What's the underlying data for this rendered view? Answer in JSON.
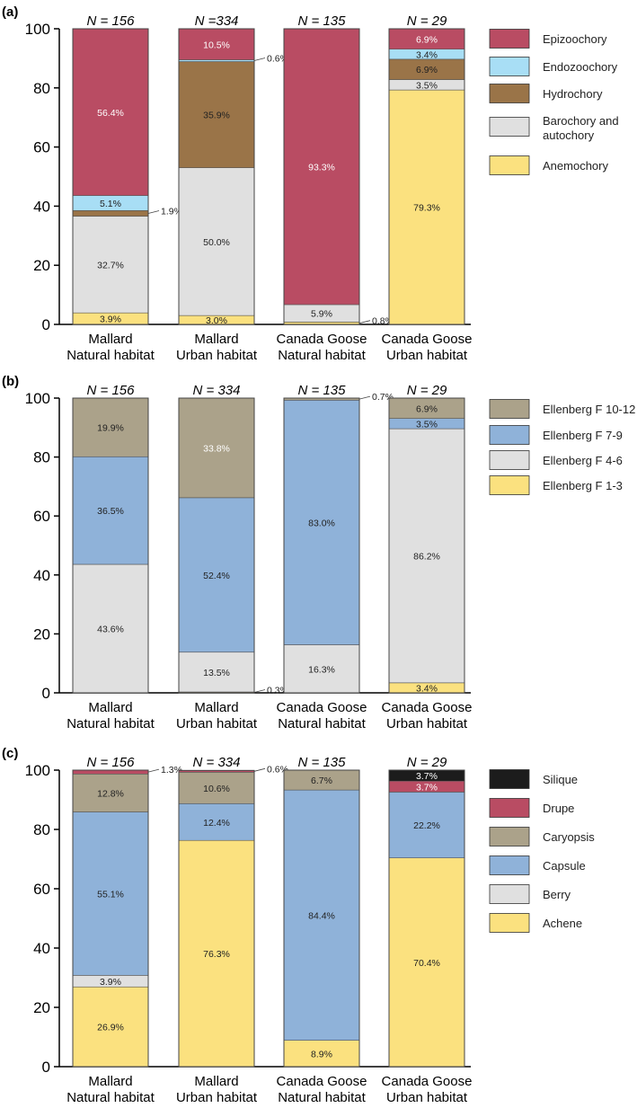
{
  "colors": {
    "epizoochory": "#b94c63",
    "endozoochory": "#a8def5",
    "hydrochory": "#9a7448",
    "barochory": "#e0e0e0",
    "anemochory": "#fbe17f",
    "ellenberg_10_12": "#aba28a",
    "ellenberg_7_9": "#8fb2d9",
    "ellenberg_4_6": "#e0e0e0",
    "ellenberg_1_3": "#fbe17f",
    "silique": "#1c1c1c",
    "drupe": "#b94c63",
    "caryopsis": "#aba28a",
    "capsule": "#8fb2d9",
    "berry": "#e0e0e0",
    "achene": "#fbe17f"
  },
  "chart_data": [
    {
      "type": "bar",
      "stacked": true,
      "panel_label": "(a)",
      "categories": [
        [
          "Mallard",
          "Natural habitat"
        ],
        [
          "Mallard",
          "Urban habitat"
        ],
        [
          "Canada Goose",
          "Natural habitat"
        ],
        [
          "Canada Goose",
          "Urban habitat"
        ]
      ],
      "n_labels": [
        "N = 156",
        "N =334",
        "N = 135",
        "N = 29"
      ],
      "ylim": [
        0,
        100
      ],
      "yticks": [
        0,
        20,
        40,
        60,
        80,
        100
      ],
      "series": [
        {
          "name": "Anemochory",
          "color_key": "anemochory",
          "values": [
            3.9,
            3.0,
            0.8,
            79.3
          ],
          "labels": [
            "3.9%",
            "3.0%",
            "0.8%",
            "79.3%"
          ]
        },
        {
          "name": "Barochory and autochory",
          "color_key": "barochory",
          "values": [
            32.7,
            50.0,
            5.9,
            3.5
          ],
          "labels": [
            "32.7%",
            "50.0%",
            "5.9%",
            "3.5%"
          ]
        },
        {
          "name": "Hydrochory",
          "color_key": "hydrochory",
          "values": [
            1.9,
            35.9,
            0,
            6.9
          ],
          "labels": [
            "1.9%",
            "35.9%",
            "",
            "6.9%"
          ]
        },
        {
          "name": "Endozoochory",
          "color_key": "endozoochory",
          "values": [
            5.1,
            0.6,
            0,
            3.4
          ],
          "labels": [
            "5.1%",
            "0.6%",
            "",
            "3.4%"
          ]
        },
        {
          "name": "Epizoochory",
          "color_key": "epizoochory",
          "values": [
            56.4,
            10.5,
            93.3,
            6.9
          ],
          "labels": [
            "56.4%",
            "10.5%",
            "93.3%",
            "6.9%"
          ]
        }
      ],
      "legend": [
        {
          "label": "Epizoochory",
          "color_key": "epizoochory"
        },
        {
          "label": "Endozoochory",
          "color_key": "endozoochory"
        },
        {
          "label": "Hydrochory",
          "color_key": "hydrochory"
        },
        {
          "label": "Barochory and autochory",
          "color_key": "barochory"
        },
        {
          "label": "Anemochory",
          "color_key": "anemochory"
        }
      ]
    },
    {
      "type": "bar",
      "stacked": true,
      "panel_label": "(b)",
      "categories": [
        [
          "Mallard",
          "Natural habitat"
        ],
        [
          "Mallard",
          "Urban habitat"
        ],
        [
          "Canada Goose",
          "Natural habitat"
        ],
        [
          "Canada Goose",
          "Urban habitat"
        ]
      ],
      "n_labels": [
        "N = 156",
        "N = 334",
        "N = 135",
        "N = 29"
      ],
      "ylim": [
        0,
        100
      ],
      "yticks": [
        0,
        20,
        40,
        60,
        80,
        100
      ],
      "series": [
        {
          "name": "Ellenberg F 1-3",
          "color_key": "ellenberg_1_3",
          "values": [
            0,
            0.3,
            0,
            3.4
          ],
          "labels": [
            "",
            "0.3%",
            "",
            "3.4%"
          ]
        },
        {
          "name": "Ellenberg F 4-6",
          "color_key": "ellenberg_4_6",
          "values": [
            43.6,
            13.5,
            16.3,
            86.2
          ],
          "labels": [
            "43.6%",
            "13.5%",
            "16.3%",
            "86.2%"
          ]
        },
        {
          "name": "Ellenberg F 7-9",
          "color_key": "ellenberg_7_9",
          "values": [
            36.5,
            52.4,
            83.0,
            3.5
          ],
          "labels": [
            "36.5%",
            "52.4%",
            "83.0%",
            "3.5%"
          ]
        },
        {
          "name": "Ellenberg F 10-12",
          "color_key": "ellenberg_10_12",
          "values": [
            19.9,
            33.8,
            0.7,
            6.9
          ],
          "labels": [
            "19.9%",
            "33.8%",
            "0.7%",
            "6.9%"
          ]
        }
      ],
      "legend": [
        {
          "label": "Ellenberg F 10-12",
          "color_key": "ellenberg_10_12"
        },
        {
          "label": "Ellenberg F 7-9",
          "color_key": "ellenberg_7_9"
        },
        {
          "label": "Ellenberg F 4-6",
          "color_key": "ellenberg_4_6"
        },
        {
          "label": "Ellenberg F 1-3",
          "color_key": "ellenberg_1_3"
        }
      ]
    },
    {
      "type": "bar",
      "stacked": true,
      "panel_label": "(c)",
      "categories": [
        [
          "Mallard",
          "Natural habitat"
        ],
        [
          "Mallard",
          "Urban habitat"
        ],
        [
          "Canada Goose",
          "Natural habitat"
        ],
        [
          "Canada Goose",
          "Urban habitat"
        ]
      ],
      "n_labels": [
        "N = 156",
        "N = 334",
        "N = 135",
        "N = 29"
      ],
      "ylim": [
        0,
        100
      ],
      "yticks": [
        0,
        20,
        40,
        60,
        80,
        100
      ],
      "series": [
        {
          "name": "Achene",
          "color_key": "achene",
          "values": [
            26.9,
            76.3,
            8.9,
            70.4
          ],
          "labels": [
            "26.9%",
            "76.3%",
            "8.9%",
            "70.4%"
          ]
        },
        {
          "name": "Berry",
          "color_key": "berry",
          "values": [
            3.9,
            0,
            0,
            0
          ],
          "labels": [
            "3.9%",
            "",
            "",
            ""
          ]
        },
        {
          "name": "Capsule",
          "color_key": "capsule",
          "values": [
            55.1,
            12.4,
            84.4,
            22.2
          ],
          "labels": [
            "55.1%",
            "12.4%",
            "84.4%",
            "22.2%"
          ]
        },
        {
          "name": "Caryopsis",
          "color_key": "caryopsis",
          "values": [
            12.8,
            10.6,
            6.7,
            0
          ],
          "labels": [
            "12.8%",
            "10.6%",
            "6.7%",
            ""
          ]
        },
        {
          "name": "Drupe",
          "color_key": "drupe",
          "values": [
            1.3,
            0.6,
            0,
            3.7
          ],
          "labels": [
            "1.3%",
            "0.6%",
            "",
            "3.7%"
          ]
        },
        {
          "name": "Silique",
          "color_key": "silique",
          "values": [
            0,
            0,
            0,
            3.7
          ],
          "labels": [
            "",
            "",
            "",
            "3.7%"
          ]
        }
      ],
      "legend": [
        {
          "label": "Silique",
          "color_key": "silique"
        },
        {
          "label": "Drupe",
          "color_key": "drupe"
        },
        {
          "label": "Caryopsis",
          "color_key": "caryopsis"
        },
        {
          "label": "Capsule",
          "color_key": "capsule"
        },
        {
          "label": "Berry",
          "color_key": "berry"
        },
        {
          "label": "Achene",
          "color_key": "achene"
        }
      ]
    }
  ]
}
